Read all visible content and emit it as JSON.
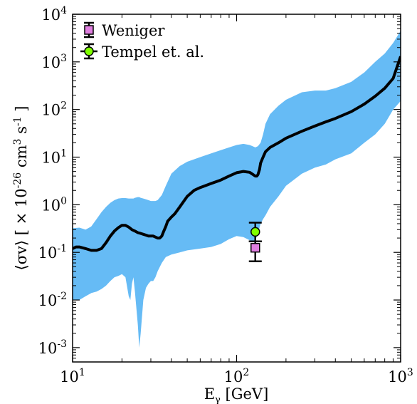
{
  "chart_data": {
    "type": "line",
    "title": "",
    "xlabel": "E",
    "xlabel_sub": "γ",
    "xlabel_unit": "[GeV]",
    "ylabel": "⟨σv⟩ [ × 10",
    "ylabel_exp1": "-26",
    "ylabel_mid": " cm",
    "ylabel_exp2": "3",
    "ylabel_mid2": " s",
    "ylabel_exp3": "-1",
    "ylabel_end": "]",
    "x_scale": "log",
    "y_scale": "log",
    "xlim": [
      10,
      1000
    ],
    "ylim": [
      0.0005,
      10000
    ],
    "x_ticks": [
      {
        "value": 10,
        "base": "10",
        "exp": "1"
      },
      {
        "value": 100,
        "base": "10",
        "exp": "2"
      },
      {
        "value": 1000,
        "base": "10",
        "exp": "3"
      }
    ],
    "y_ticks": [
      {
        "value": 0.001,
        "base": "10",
        "exp": "-3"
      },
      {
        "value": 0.01,
        "base": "10",
        "exp": "-2"
      },
      {
        "value": 0.1,
        "base": "10",
        "exp": "-1"
      },
      {
        "value": 1,
        "base": "10",
        "exp": "0"
      },
      {
        "value": 10,
        "base": "10",
        "exp": "1"
      },
      {
        "value": 100,
        "base": "10",
        "exp": "2"
      },
      {
        "value": 1000,
        "base": "10",
        "exp": "3"
      },
      {
        "value": 10000,
        "base": "10",
        "exp": "4"
      }
    ],
    "grid": false,
    "legend_position": "top-left",
    "band": {
      "color": "#66bbf5",
      "x": [
        10,
        11,
        12,
        13,
        14,
        15,
        16,
        17,
        18,
        19,
        20,
        21,
        22,
        22.5,
        23,
        23.5,
        24,
        25,
        25.5,
        26,
        27,
        28,
        29,
        30,
        31,
        32,
        33,
        35,
        37,
        40,
        45,
        50,
        60,
        70,
        80,
        90,
        100,
        110,
        120,
        125,
        130,
        135,
        140,
        145,
        150,
        160,
        180,
        200,
        250,
        300,
        350,
        400,
        500,
        600,
        700,
        800,
        900,
        1000
      ],
      "upper": [
        0.32,
        0.33,
        0.3,
        0.35,
        0.5,
        0.7,
        0.9,
        1.1,
        1.25,
        1.35,
        1.38,
        1.38,
        1.35,
        1.35,
        1.35,
        1.35,
        1.4,
        1.45,
        1.45,
        1.4,
        1.35,
        1.3,
        1.25,
        1.2,
        1.2,
        1.2,
        1.25,
        1.6,
        2.5,
        4.5,
        6.5,
        8,
        10,
        12,
        14,
        16,
        18,
        19,
        18,
        17,
        16,
        17,
        20,
        30,
        50,
        80,
        120,
        160,
        230,
        250,
        250,
        280,
        380,
        600,
        1000,
        1500,
        2500,
        4500
      ],
      "lower": [
        0.01,
        0.01,
        0.012,
        0.014,
        0.015,
        0.017,
        0.02,
        0.025,
        0.03,
        0.032,
        0.035,
        0.03,
        0.012,
        0.01,
        0.022,
        0.03,
        0.015,
        0.003,
        0.001,
        0.002,
        0.01,
        0.018,
        0.022,
        0.025,
        0.025,
        0.03,
        0.04,
        0.06,
        0.08,
        0.09,
        0.1,
        0.11,
        0.12,
        0.13,
        0.15,
        0.19,
        0.22,
        0.21,
        0.18,
        0.17,
        0.18,
        0.25,
        0.4,
        0.5,
        0.6,
        0.9,
        1.5,
        2.5,
        4.5,
        6,
        7,
        9,
        12,
        20,
        30,
        50,
        100,
        150
      ]
    },
    "series": [
      {
        "color": "#000000",
        "x": [
          10,
          10.5,
          11,
          12,
          13,
          14,
          15,
          16,
          17,
          18,
          19,
          20,
          21,
          22,
          23,
          24,
          25,
          26,
          27,
          28,
          29,
          30,
          31,
          32,
          33,
          34,
          35,
          36,
          37,
          38,
          40,
          42,
          45,
          50,
          55,
          60,
          70,
          80,
          90,
          100,
          110,
          120,
          125,
          130,
          133,
          135,
          138,
          140,
          145,
          150,
          160,
          180,
          200,
          250,
          300,
          350,
          400,
          500,
          600,
          700,
          800,
          900,
          1000
        ],
        "values": [
          0.12,
          0.13,
          0.13,
          0.12,
          0.11,
          0.11,
          0.12,
          0.16,
          0.22,
          0.28,
          0.33,
          0.37,
          0.37,
          0.34,
          0.3,
          0.28,
          0.26,
          0.25,
          0.24,
          0.23,
          0.22,
          0.22,
          0.22,
          0.21,
          0.2,
          0.2,
          0.22,
          0.28,
          0.35,
          0.45,
          0.55,
          0.65,
          0.9,
          1.5,
          2,
          2.3,
          2.8,
          3.3,
          4,
          4.7,
          5,
          4.8,
          4.4,
          4,
          4,
          4.3,
          5.5,
          7.5,
          10,
          13,
          16,
          20,
          25,
          35,
          45,
          55,
          65,
          90,
          130,
          190,
          280,
          450,
          1300
        ]
      }
    ],
    "points": [
      {
        "name": "Weniger",
        "x": 130,
        "y": 0.125,
        "yerr_low": 0.065,
        "yerr_high": 0.17,
        "marker": "square",
        "color": "#e07fe0"
      },
      {
        "name": "Tempel et. al.",
        "x": 130,
        "y": 0.27,
        "yerr_low": 0.17,
        "yerr_high": 0.42,
        "marker": "circle",
        "color": "#7fff00"
      }
    ],
    "legend": [
      "Weniger",
      "Tempel et. al."
    ]
  }
}
